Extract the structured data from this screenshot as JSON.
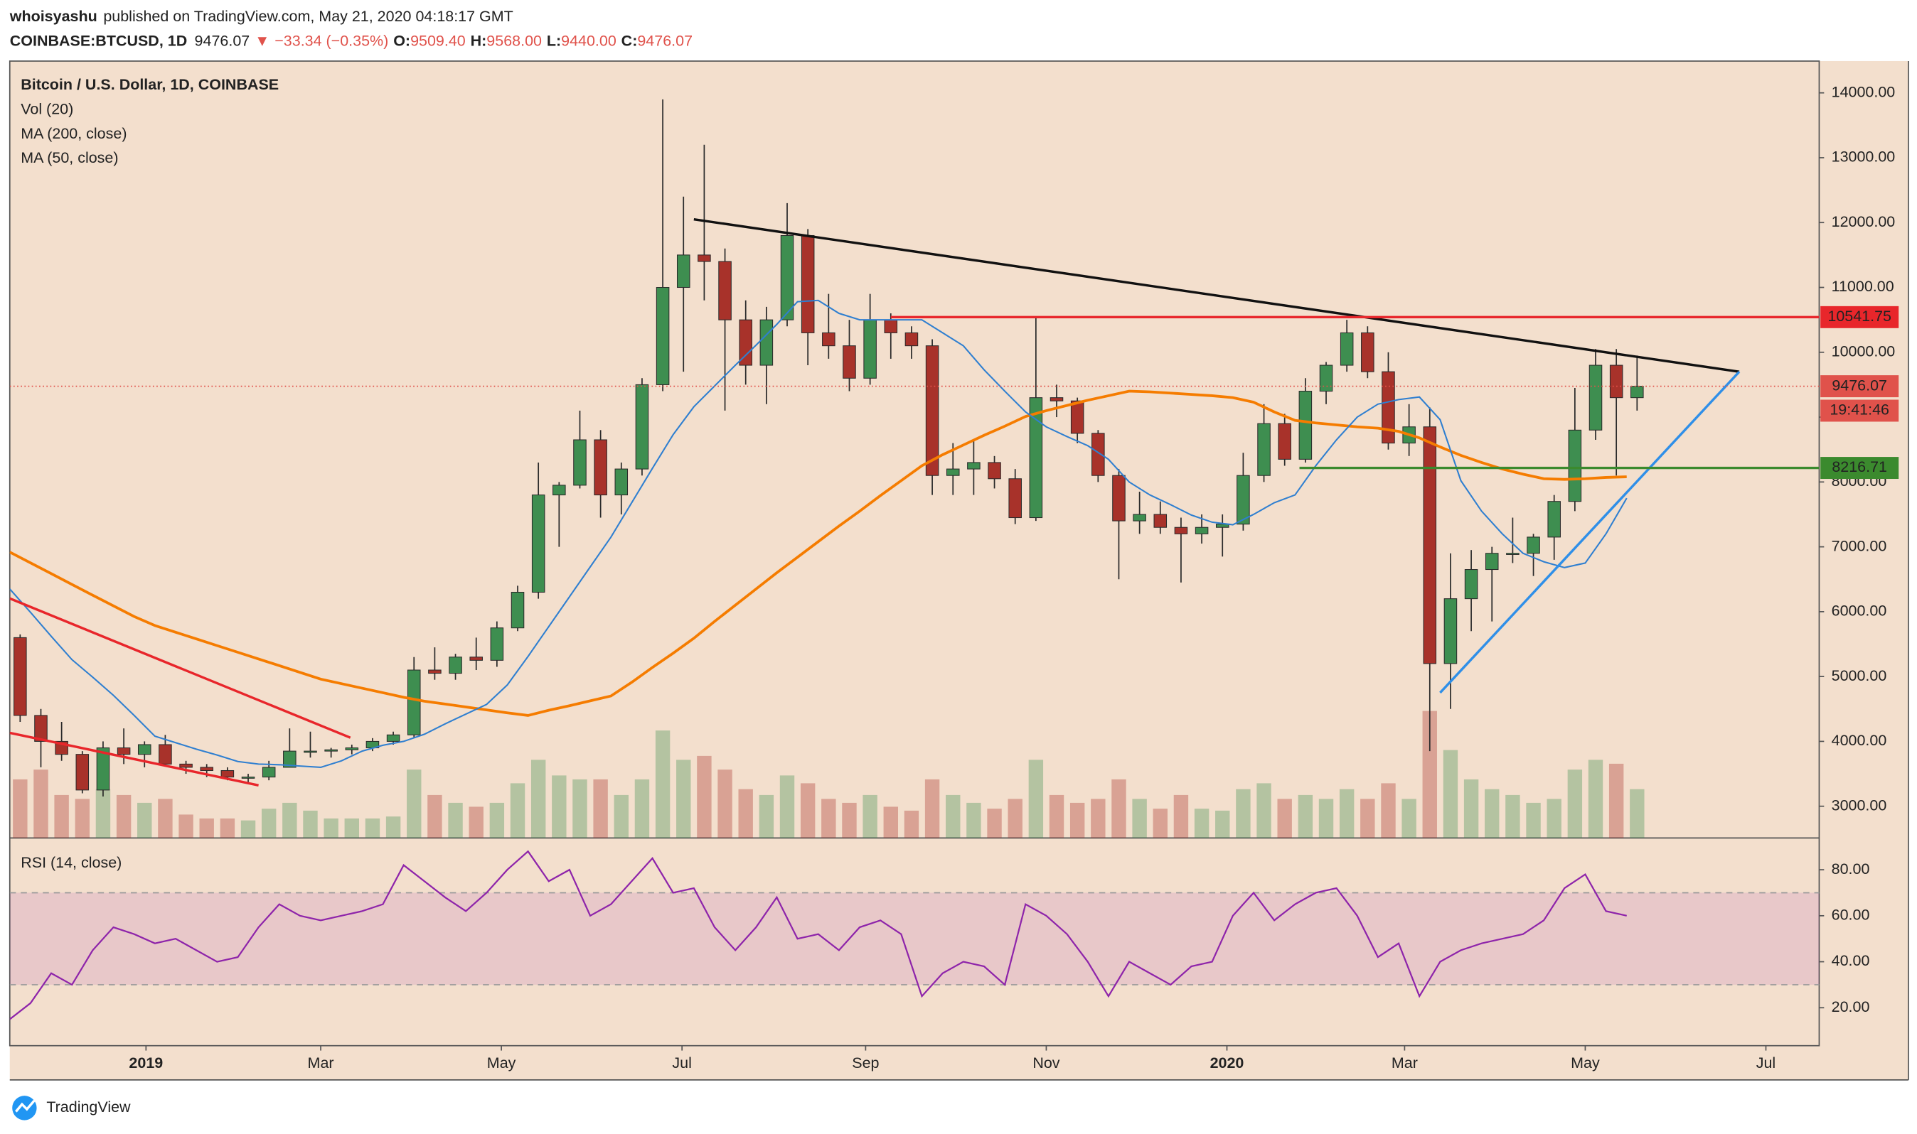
{
  "header": {
    "author": "whoisyashu",
    "published": "published on TradingView.com, May 21, 2020 04:18:17 GMT",
    "symbol": "COINBASE:BTCUSD, 1D",
    "price": "9476.07",
    "arrow": "▼",
    "change": "−33.34 (−0.35%)",
    "ohlc": [
      {
        "label": "O:",
        "value": "9509.40"
      },
      {
        "label": "H:",
        "value": "9568.00"
      },
      {
        "label": "L:",
        "value": "9440.00"
      },
      {
        "label": "C:",
        "value": "9476.07"
      }
    ]
  },
  "footer": {
    "brand": "TradingView"
  },
  "chart_data": {
    "type": "candlestick",
    "title": "Bitcoin / U.S. Dollar, 1D, COINBASE",
    "up_color": "#3e8e50",
    "down_color": "#a8322a",
    "x": [
      0,
      7,
      14,
      21,
      28,
      35,
      42,
      49,
      56,
      63,
      70,
      77,
      84,
      91,
      98,
      105,
      112,
      119,
      126,
      133,
      140,
      147,
      154,
      161,
      168,
      175,
      182,
      189,
      196,
      203,
      210,
      217,
      224,
      231,
      238,
      245,
      252,
      259,
      266,
      273,
      280,
      287,
      294,
      301,
      308,
      315,
      322,
      329,
      336,
      343,
      350,
      357,
      364,
      371,
      378,
      385,
      392,
      399,
      406,
      413,
      420,
      427,
      434,
      441,
      448,
      455,
      462,
      469,
      476,
      483,
      490,
      497,
      504,
      511,
      518,
      525,
      532,
      539,
      546
    ],
    "open": [
      5600,
      4400,
      4000,
      3800,
      3250,
      3900,
      3800,
      3950,
      3650,
      3600,
      3550,
      3450,
      3450,
      3600,
      3850,
      3850,
      3870,
      3900,
      4000,
      4100,
      5100,
      5050,
      5300,
      5250,
      5750,
      6300,
      7800,
      7950,
      8650,
      7800,
      8200,
      9500,
      11000,
      11500,
      11400,
      10500,
      9800,
      10500,
      11800,
      10300,
      10100,
      9600,
      10500,
      10300,
      10100,
      8100,
      8200,
      8300,
      8050,
      7450,
      9300,
      9250,
      8750,
      8100,
      7400,
      7500,
      7300,
      7200,
      7300,
      7350,
      8100,
      8900,
      8350,
      9400,
      9800,
      10300,
      9700,
      8600,
      8850,
      5200,
      6200,
      6650,
      6900,
      6900,
      7150,
      7700,
      8800,
      9800,
      9300
    ],
    "high": [
      5650,
      4500,
      4300,
      3850,
      4000,
      4200,
      4000,
      4100,
      3700,
      3650,
      3600,
      3500,
      3700,
      4200,
      4150,
      3900,
      3950,
      4050,
      4150,
      5300,
      5450,
      5350,
      5600,
      5850,
      6400,
      8300,
      8000,
      9100,
      8800,
      8300,
      9600,
      13900,
      12400,
      13200,
      11600,
      10800,
      10700,
      12300,
      11900,
      10900,
      10500,
      10900,
      10600,
      10400,
      10200,
      8600,
      8650,
      8400,
      8200,
      10550,
      9500,
      9300,
      8800,
      8200,
      7850,
      7700,
      7450,
      7500,
      7500,
      8450,
      9200,
      9050,
      9600,
      9850,
      10500,
      10400,
      10000,
      9200,
      9150,
      6900,
      6950,
      7000,
      7450,
      7200,
      7800,
      9450,
      10050,
      10050,
      9950
    ],
    "low": [
      4300,
      3600,
      3700,
      3200,
      3150,
      3650,
      3600,
      3650,
      3500,
      3450,
      3400,
      3350,
      3400,
      3600,
      3750,
      3750,
      3800,
      3850,
      3950,
      4050,
      4950,
      4950,
      5100,
      5150,
      5700,
      6200,
      7000,
      7900,
      7450,
      7500,
      8100,
      9400,
      9700,
      10800,
      9100,
      9500,
      9200,
      10400,
      9800,
      9900,
      9400,
      9500,
      9900,
      9900,
      7800,
      7800,
      7800,
      7900,
      7350,
      7400,
      9000,
      8600,
      8000,
      6500,
      7200,
      7200,
      6450,
      7050,
      6850,
      7250,
      8000,
      8250,
      8300,
      9200,
      9700,
      9600,
      8500,
      8400,
      3850,
      4500,
      5700,
      5850,
      6750,
      6550,
      6800,
      7550,
      8650,
      8100,
      9100
    ],
    "close": [
      4400,
      4000,
      3800,
      3250,
      3900,
      3800,
      3950,
      3650,
      3600,
      3550,
      3450,
      3450,
      3600,
      3850,
      3850,
      3870,
      3900,
      4000,
      4100,
      5100,
      5050,
      5300,
      5250,
      5750,
      6300,
      7800,
      7950,
      8650,
      7800,
      8200,
      9500,
      11000,
      11500,
      11400,
      10500,
      9800,
      10500,
      11800,
      10300,
      10100,
      9600,
      10500,
      10300,
      10100,
      8100,
      8200,
      8300,
      8050,
      7450,
      9300,
      9250,
      8750,
      8100,
      7400,
      7500,
      7300,
      7200,
      7300,
      7350,
      8100,
      8900,
      8350,
      9400,
      9800,
      10300,
      9700,
      8600,
      8850,
      5200,
      6200,
      6650,
      6900,
      6900,
      7150,
      7700,
      8800,
      9800,
      9300,
      9476.07
    ],
    "xlim": [
      0,
      611
    ],
    "xticks": [
      {
        "value": 46,
        "label": "2019"
      },
      {
        "value": 105,
        "label": "Mar"
      },
      {
        "value": 166,
        "label": "May"
      },
      {
        "value": 227,
        "label": "Jul"
      },
      {
        "value": 289,
        "label": "Sep"
      },
      {
        "value": 350,
        "label": "Nov"
      },
      {
        "value": 411,
        "label": "2020"
      },
      {
        "value": 471,
        "label": "Mar"
      },
      {
        "value": 532,
        "label": "May"
      },
      {
        "value": 593,
        "label": "Jul"
      }
    ],
    "ylim": [
      2510,
      14490
    ],
    "yticks": [
      {
        "value": 3000,
        "label": "3000.00"
      },
      {
        "value": 4000,
        "label": "4000.00"
      },
      {
        "value": 5000,
        "label": "5000.00"
      },
      {
        "value": 6000,
        "label": "6000.00"
      },
      {
        "value": 7000,
        "label": "7000.00"
      },
      {
        "value": 8000,
        "label": "8000.00"
      },
      {
        "value": 9000,
        "label": "9000.00"
      },
      {
        "value": 10000,
        "label": "10000.00"
      },
      {
        "value": 11000,
        "label": "11000.00"
      },
      {
        "value": 12000,
        "label": "12000.00"
      },
      {
        "value": 13000,
        "label": "13000.00"
      },
      {
        "value": 14000,
        "label": "14000.00"
      }
    ],
    "series": [
      {
        "name": "MA (200, close)",
        "color": "#f57c00",
        "values": [
          6919,
          6753,
          6587,
          6420,
          6254,
          6090,
          5925,
          5786,
          5683,
          5580,
          5477,
          5374,
          5271,
          5168,
          5064,
          4960,
          4890,
          4820,
          4750,
          4680,
          4620,
          4576,
          4530,
          4485,
          4440,
          4400,
          4480,
          4550,
          4625,
          4700,
          4910,
          5140,
          5360,
          5590,
          5850,
          6100,
          6350,
          6600,
          6840,
          7080,
          7320,
          7550,
          7790,
          8020,
          8250,
          8420,
          8570,
          8720,
          8860,
          9010,
          9100,
          9180,
          9260,
          9330,
          9400,
          9390,
          9370,
          9350,
          9330,
          9300,
          9230,
          9080,
          8950,
          8910,
          8880,
          8850,
          8830,
          8780,
          8680,
          8540,
          8410,
          8300,
          8200,
          8120,
          8050,
          8040,
          8050,
          8070,
          8080
        ]
      },
      {
        "name": "MA (50, close)",
        "color": "#2f7fd0",
        "values": [
          6350,
          5990,
          5620,
          5260,
          4990,
          4710,
          4400,
          4080,
          3980,
          3880,
          3790,
          3690,
          3650,
          3640,
          3620,
          3600,
          3700,
          3850,
          3940,
          4000,
          4110,
          4270,
          4420,
          4570,
          4870,
          5310,
          5770,
          6230,
          6690,
          7150,
          7680,
          8210,
          8730,
          9160,
          9480,
          9800,
          10110,
          10430,
          10780,
          10800,
          10600,
          10500,
          10500,
          10500,
          10500,
          10300,
          10100,
          9730,
          9400,
          9080,
          8850,
          8700,
          8560,
          8350,
          8000,
          7800,
          7650,
          7490,
          7380,
          7340,
          7500,
          7680,
          7800,
          8250,
          8650,
          9000,
          9200,
          9270,
          9310,
          8960,
          8020,
          7550,
          7200,
          6900,
          6770,
          6680,
          6750,
          7200,
          7750
        ]
      }
    ],
    "volume": {
      "name": "Vol (20)",
      "values": [
        30,
        35,
        22,
        20,
        25,
        22,
        18,
        20,
        12,
        10,
        10,
        9,
        15,
        18,
        14,
        10,
        10,
        10,
        11,
        35,
        22,
        18,
        16,
        18,
        28,
        40,
        32,
        30,
        30,
        22,
        30,
        55,
        40,
        42,
        35,
        25,
        22,
        32,
        28,
        20,
        18,
        22,
        16,
        14,
        30,
        22,
        18,
        15,
        20,
        40,
        22,
        18,
        20,
        30,
        20,
        15,
        22,
        15,
        14,
        25,
        28,
        20,
        22,
        20,
        25,
        20,
        28,
        20,
        65,
        45,
        30,
        25,
        22,
        18,
        20,
        35,
        40,
        38,
        25
      ]
    },
    "rsi": {
      "name": "RSI (14, close)",
      "color": "#8e24aa",
      "ylim": [
        3.5,
        93.8
      ],
      "yticks": [
        {
          "value": 20,
          "label": "20.00"
        },
        {
          "value": 40,
          "label": "40.00"
        },
        {
          "value": 60,
          "label": "60.00"
        },
        {
          "value": 80,
          "label": "80.00"
        }
      ],
      "band": [
        30,
        70
      ],
      "values": [
        15,
        22,
        35,
        30,
        45,
        55,
        52,
        48,
        50,
        45,
        40,
        42,
        55,
        65,
        60,
        58,
        60,
        62,
        65,
        82,
        75,
        68,
        62,
        70,
        80,
        88,
        75,
        80,
        60,
        65,
        75,
        85,
        70,
        72,
        55,
        45,
        55,
        68,
        50,
        52,
        45,
        55,
        58,
        52,
        25,
        35,
        40,
        38,
        30,
        65,
        60,
        52,
        40,
        25,
        40,
        35,
        30,
        38,
        40,
        60,
        70,
        58,
        65,
        70,
        72,
        60,
        42,
        48,
        25,
        40,
        45,
        48,
        50,
        52,
        58,
        72,
        78,
        62,
        60
      ]
    },
    "trendlines": [
      {
        "color": "#111111",
        "points": [
          [
            231,
            12050
          ],
          [
            584,
            9700
          ]
        ]
      },
      {
        "color": "#2f8fe8",
        "points": [
          [
            483,
            4750
          ],
          [
            584,
            9700
          ]
        ]
      },
      {
        "color": "#e8262b",
        "points": [
          [
            0,
            6204
          ],
          [
            115,
            4057
          ]
        ]
      },
      {
        "color": "#e8262b",
        "points": [
          [
            0,
            4132
          ],
          [
            84,
            3322
          ]
        ]
      }
    ],
    "levels": [
      {
        "value": 10541.75,
        "x": 297.5,
        "color": "#e8262b"
      },
      {
        "value": 8216.71,
        "x": 435.5,
        "color": "#3b8a2e"
      }
    ],
    "last_price": {
      "value": 9476.07,
      "countdown": "19:41:46",
      "color": "#e0524b"
    }
  }
}
